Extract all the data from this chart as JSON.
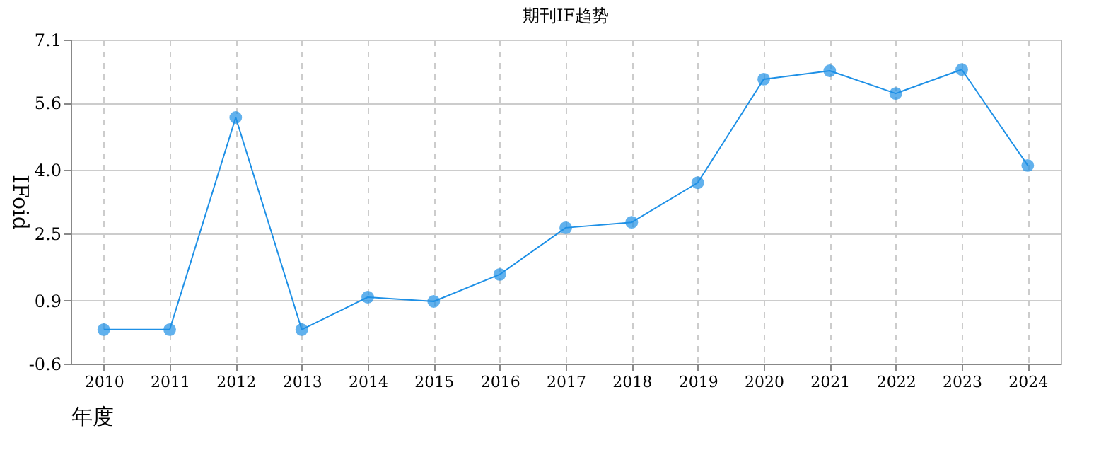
{
  "chart_data": {
    "type": "line",
    "title": "期刊IF趋势",
    "xlabel": "年度",
    "ylabel": "IFoid",
    "categories": [
      "2010",
      "2011",
      "2012",
      "2013",
      "2014",
      "2015",
      "2016",
      "2017",
      "2018",
      "2019",
      "2020",
      "2021",
      "2022",
      "2023",
      "2024"
    ],
    "series": [
      {
        "color": "#1e90e6",
        "values": [
          0.21,
          0.21,
          5.25,
          0.21,
          0.98,
          0.88,
          1.52,
          2.63,
          2.76,
          3.7,
          6.16,
          6.36,
          5.82,
          6.39,
          4.11
        ]
      }
    ],
    "ylim": [
      -0.6,
      7.1
    ],
    "yticks": [
      -0.6,
      0.9,
      2.5,
      {
        "value": 4,
        "label": "4.0"
      },
      5.6,
      7.1
    ],
    "grid": true,
    "marker": "circle",
    "line_style": "solid"
  }
}
